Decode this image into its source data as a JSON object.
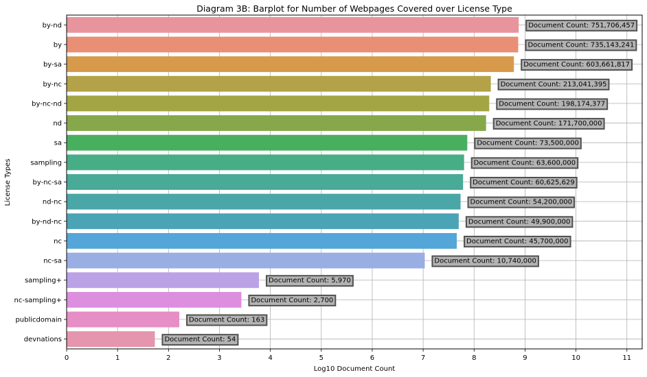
{
  "chart_data": {
    "type": "bar",
    "orientation": "horizontal",
    "title": "Diagram 3B: Barplot for Number of Webpages Covered over License Type",
    "xlabel": "Log10 Document Count",
    "ylabel": "License Types",
    "xlim": [
      0,
      11.3
    ],
    "xticks": [
      "0",
      "1",
      "2",
      "3",
      "4",
      "5",
      "6",
      "7",
      "8",
      "9",
      "10",
      "11"
    ],
    "grid": true,
    "categories": [
      "by-nd",
      "by",
      "by-sa",
      "by-nc",
      "by-nc-nd",
      "nd",
      "sa",
      "sampling",
      "by-nc-sa",
      "nd-nc",
      "by-nd-nc",
      "nc",
      "nc-sa",
      "sampling+",
      "nc-sampling+",
      "publicdomain",
      "devnations"
    ],
    "values": [
      8.876,
      8.866,
      8.781,
      8.328,
      8.297,
      8.235,
      7.866,
      7.803,
      7.783,
      7.734,
      7.698,
      7.66,
      7.031,
      3.776,
      3.431,
      2.212,
      1.732
    ],
    "annotations": [
      "Document Count: 751,706,457",
      "Document Count: 735,143,241",
      "Document Count: 603,661,817",
      "Document Count: 213,041,395",
      "Document Count: 198,174,377",
      "Document Count: 171,700,000",
      "Document Count: 73,500,000",
      "Document Count: 63,600,000",
      "Document Count: 60,625,629",
      "Document Count: 54,200,000",
      "Document Count: 49,900,000",
      "Document Count: 45,700,000",
      "Document Count: 10,740,000",
      "Document Count: 5,970",
      "Document Count: 2,700",
      "Document Count: 163",
      "Document Count: 54"
    ],
    "colors": [
      "#e8949d",
      "#e88f76",
      "#d79a4b",
      "#b3a247",
      "#a3a444",
      "#86a84a",
      "#47af5e",
      "#47ad86",
      "#49aa98",
      "#4aa6a7",
      "#4ba3b6",
      "#54a6d9",
      "#99aee3",
      "#bba2e6",
      "#dc8edf",
      "#e68ec6",
      "#e695ae"
    ],
    "annotation_box_color": "#b3b3b3"
  }
}
